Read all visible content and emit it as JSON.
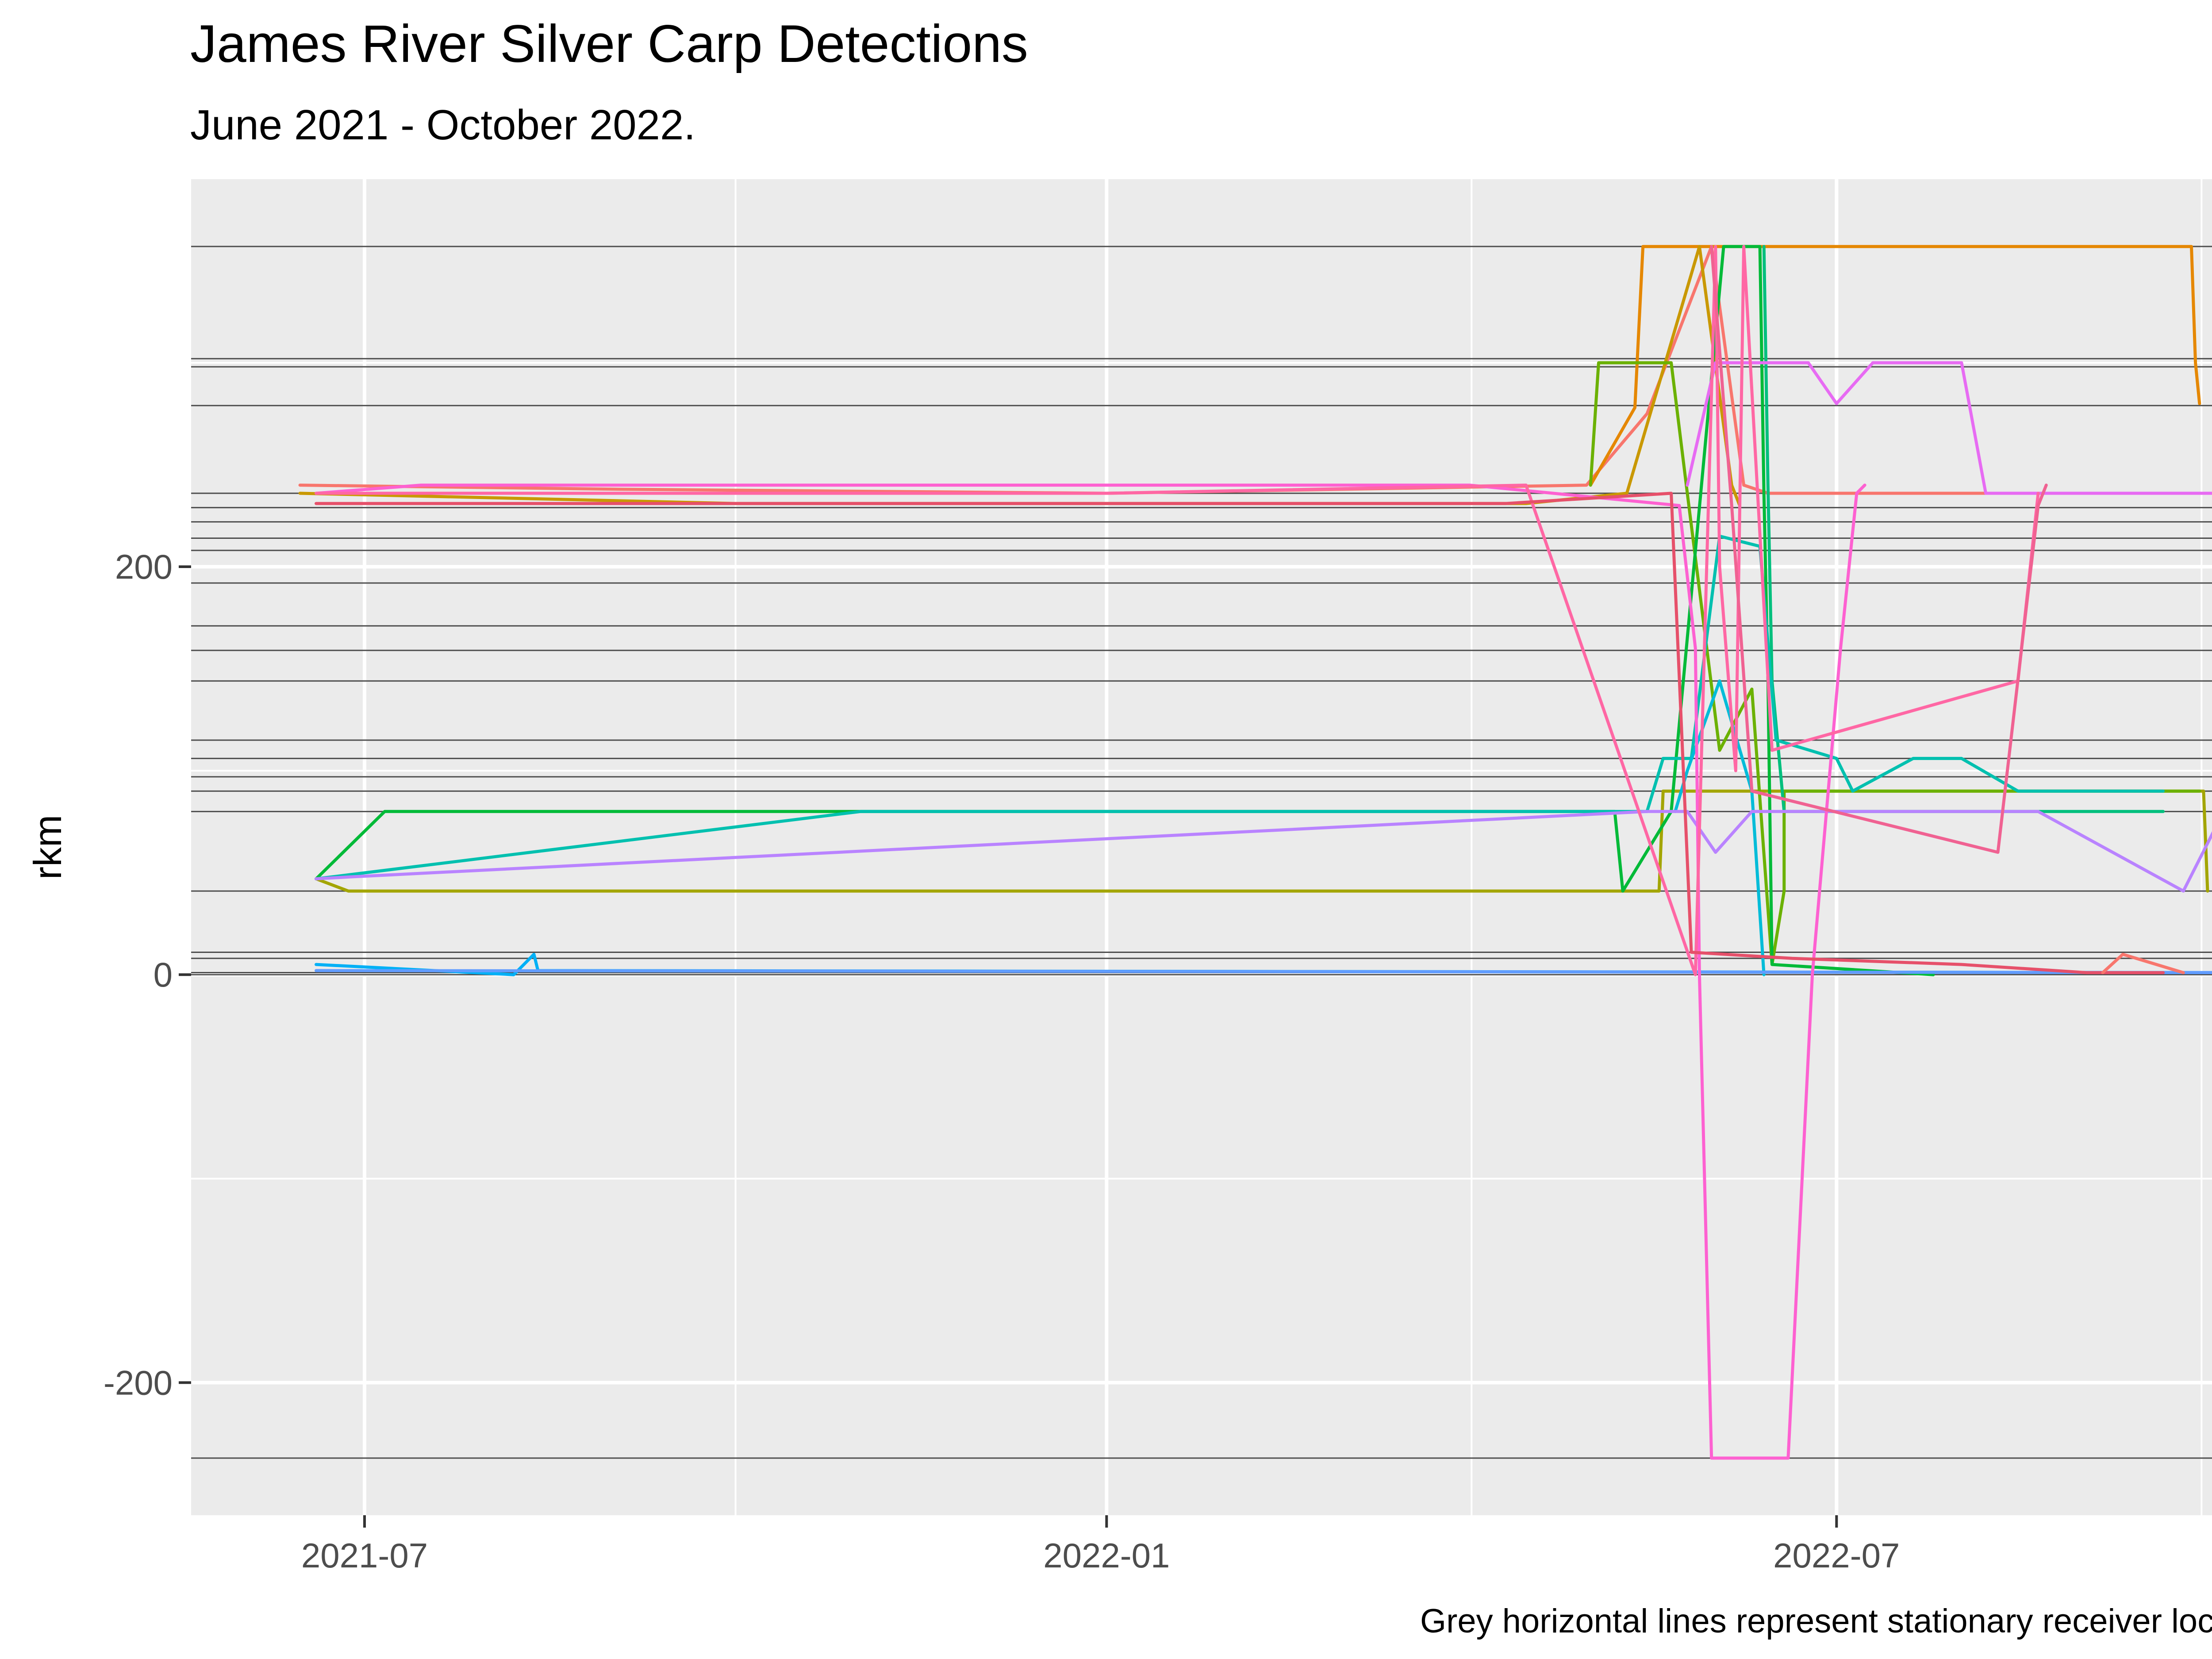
{
  "chart_data": {
    "type": "line",
    "title": "James River Silver Carp Detections",
    "subtitle": "June 2021 - October 2022.",
    "caption": "Grey horizontal lines represent stationary receiver locations",
    "xlabel": "",
    "ylabel": "rkm",
    "xlim": [
      "2021-05-19",
      "2022-10-27"
    ],
    "ylim": [
      -265,
      390
    ],
    "x_ticks": [
      {
        "date": "2021-07-01",
        "label": "2021-07"
      },
      {
        "date": "2022-01-01",
        "label": "2022-01"
      },
      {
        "date": "2022-07-01",
        "label": "2022-07"
      }
    ],
    "y_ticks": [
      -200,
      0,
      200
    ],
    "grid": true,
    "legend": "none",
    "colors": {
      "panel": "#ebebeb",
      "grid": "#ffffff",
      "receiver_line": "#4d4d4d"
    },
    "receiver_locations": [
      -237,
      0,
      1,
      8,
      11,
      41,
      80,
      90,
      97,
      106,
      115,
      144,
      159,
      171,
      192,
      208,
      214,
      222,
      229,
      236,
      279,
      298,
      302,
      357
    ],
    "series": [
      {
        "color": "#F8766D",
        "points": [
          [
            "2021-06-15",
            240
          ],
          [
            "2021-09-01",
            238
          ],
          [
            "2022-01-01",
            236
          ],
          [
            "2022-04-30",
            240
          ],
          [
            "2022-05-15",
            275
          ],
          [
            "2022-05-31",
            357
          ],
          [
            "2022-06-08",
            240
          ],
          [
            "2022-06-14",
            236
          ],
          [
            "2022-10-12",
            236
          ]
        ]
      },
      {
        "color": "#E58700",
        "points": [
          [
            "2022-05-01",
            240
          ],
          [
            "2022-05-12",
            278
          ],
          [
            "2022-05-14",
            357
          ],
          [
            "2022-09-27",
            357
          ],
          [
            "2022-09-28",
            300
          ],
          [
            "2022-09-29",
            280
          ]
        ]
      },
      {
        "color": "#C99800",
        "points": [
          [
            "2021-06-15",
            236
          ],
          [
            "2021-10-01",
            231
          ],
          [
            "2022-04-15",
            231
          ],
          [
            "2022-05-10",
            236
          ],
          [
            "2022-05-28",
            357
          ],
          [
            "2022-06-05",
            240
          ],
          [
            "2022-06-07",
            230
          ]
        ]
      },
      {
        "color": "#A3A500",
        "points": [
          [
            "2021-06-19",
            47
          ],
          [
            "2021-06-27",
            41
          ],
          [
            "2022-05-18",
            41
          ],
          [
            "2022-05-19",
            90
          ],
          [
            "2022-09-30",
            90
          ],
          [
            "2022-10-01",
            41
          ]
        ]
      },
      {
        "color": "#6BB100",
        "points": [
          [
            "2022-05-01",
            240
          ],
          [
            "2022-05-03",
            300
          ],
          [
            "2022-05-21",
            300
          ],
          [
            "2022-05-25",
            236
          ],
          [
            "2022-06-02",
            110
          ],
          [
            "2022-06-10",
            140
          ],
          [
            "2022-06-15",
            5
          ],
          [
            "2022-06-18",
            41
          ],
          [
            "2022-06-18",
            90
          ],
          [
            "2022-09-29",
            90
          ]
        ]
      },
      {
        "color": "#00BA38",
        "points": [
          [
            "2021-06-19",
            47
          ],
          [
            "2021-07-06",
            80
          ],
          [
            "2022-05-07",
            80
          ],
          [
            "2022-05-09",
            41
          ],
          [
            "2022-05-21",
            80
          ],
          [
            "2022-06-03",
            357
          ],
          [
            "2022-06-12",
            357
          ],
          [
            "2022-06-13",
            236
          ],
          [
            "2022-06-14",
            144
          ],
          [
            "2022-06-15",
            5
          ],
          [
            "2022-07-25",
            0
          ]
        ]
      },
      {
        "color": "#00BF7D",
        "points": [
          [
            "2022-06-13",
            357
          ],
          [
            "2022-06-14",
            240
          ],
          [
            "2022-06-15",
            144
          ],
          [
            "2022-06-18",
            80
          ],
          [
            "2022-09-20",
            80
          ]
        ]
      },
      {
        "color": "#00C0AF",
        "points": [
          [
            "2021-06-19",
            47
          ],
          [
            "2021-11-01",
            80
          ],
          [
            "2022-05-15",
            80
          ],
          [
            "2022-05-19",
            106
          ],
          [
            "2022-05-26",
            106
          ],
          [
            "2022-06-02",
            215
          ],
          [
            "2022-06-12",
            210
          ],
          [
            "2022-06-16",
            115
          ],
          [
            "2022-07-01",
            106
          ],
          [
            "2022-07-05",
            90
          ],
          [
            "2022-07-20",
            106
          ],
          [
            "2022-08-01",
            106
          ],
          [
            "2022-08-15",
            90
          ],
          [
            "2022-09-20",
            90
          ]
        ]
      },
      {
        "color": "#00BCD8",
        "points": [
          [
            "2022-05-22",
            80
          ],
          [
            "2022-05-25",
            100
          ],
          [
            "2022-06-02",
            144
          ],
          [
            "2022-06-10",
            90
          ],
          [
            "2022-06-13",
            0
          ]
        ]
      },
      {
        "color": "#00B0F6",
        "points": [
          [
            "2021-06-19",
            5
          ],
          [
            "2021-08-07",
            0
          ],
          [
            "2021-08-12",
            10
          ],
          [
            "2021-08-13",
            2
          ],
          [
            "2022-10-15",
            1
          ]
        ]
      },
      {
        "color": "#619CFF",
        "points": [
          [
            "2021-06-19",
            2
          ],
          [
            "2022-10-15",
            1
          ]
        ]
      },
      {
        "color": "#B983FF",
        "points": [
          [
            "2021-06-19",
            47
          ],
          [
            "2021-06-28",
            48
          ],
          [
            "2022-05-15",
            80
          ],
          [
            "2022-05-25",
            80
          ],
          [
            "2022-06-01",
            60
          ],
          [
            "2022-06-10",
            80
          ],
          [
            "2022-07-01",
            80
          ],
          [
            "2022-08-20",
            80
          ],
          [
            "2022-09-25",
            41
          ],
          [
            "2022-10-05",
            80
          ],
          [
            "2022-10-12",
            80
          ]
        ]
      },
      {
        "color": "#E76BF3",
        "points": [
          [
            "2022-05-25",
            240
          ],
          [
            "2022-06-01",
            300
          ],
          [
            "2022-06-16",
            300
          ],
          [
            "2022-06-24",
            300
          ],
          [
            "2022-07-01",
            280
          ],
          [
            "2022-07-10",
            300
          ],
          [
            "2022-08-01",
            300
          ],
          [
            "2022-08-07",
            236
          ],
          [
            "2022-10-12",
            236
          ]
        ]
      },
      {
        "color": "#FD61D1",
        "points": [
          [
            "2021-06-19",
            236
          ],
          [
            "2021-07-15",
            240
          ],
          [
            "2022-04-01",
            240
          ],
          [
            "2022-05-23",
            230
          ],
          [
            "2022-05-27",
            160
          ],
          [
            "2022-05-28",
            0
          ],
          [
            "2022-05-31",
            -237
          ],
          [
            "2022-06-19",
            -237
          ],
          [
            "2022-06-25",
            0
          ],
          [
            "2022-07-02",
            160
          ],
          [
            "2022-07-06",
            236
          ],
          [
            "2022-07-08",
            240
          ]
        ]
      },
      {
        "color": "#FF67A4",
        "points": [
          [
            "2021-06-19",
            236
          ],
          [
            "2022-01-01",
            236
          ],
          [
            "2022-04-15",
            240
          ],
          [
            "2022-05-27",
            0
          ],
          [
            "2022-06-01",
            357
          ],
          [
            "2022-06-02",
            200
          ],
          [
            "2022-06-06",
            100
          ],
          [
            "2022-06-08",
            357
          ],
          [
            "2022-06-15",
            110
          ],
          [
            "2022-08-15",
            144
          ],
          [
            "2022-08-20",
            236
          ]
        ]
      },
      {
        "color": "#E6506A",
        "points": [
          [
            "2021-06-19",
            231
          ],
          [
            "2022-04-10",
            231
          ],
          [
            "2022-05-21",
            236
          ],
          [
            "2022-05-26",
            11
          ],
          [
            "2022-06-20",
            8
          ],
          [
            "2022-08-01",
            5
          ],
          [
            "2022-09-01",
            1
          ],
          [
            "2022-09-20",
            1
          ]
        ]
      },
      {
        "color": "#F06292",
        "points": [
          [
            "2022-05-31",
            357
          ],
          [
            "2022-06-05",
            230
          ],
          [
            "2022-06-10",
            90
          ],
          [
            "2022-08-10",
            60
          ],
          [
            "2022-08-20",
            230
          ],
          [
            "2022-08-22",
            240
          ]
        ]
      },
      {
        "color": "#F8766D",
        "points": [
          [
            "2022-09-05",
            1
          ],
          [
            "2022-09-10",
            10
          ],
          [
            "2022-09-25",
            1
          ]
        ]
      }
    ]
  }
}
